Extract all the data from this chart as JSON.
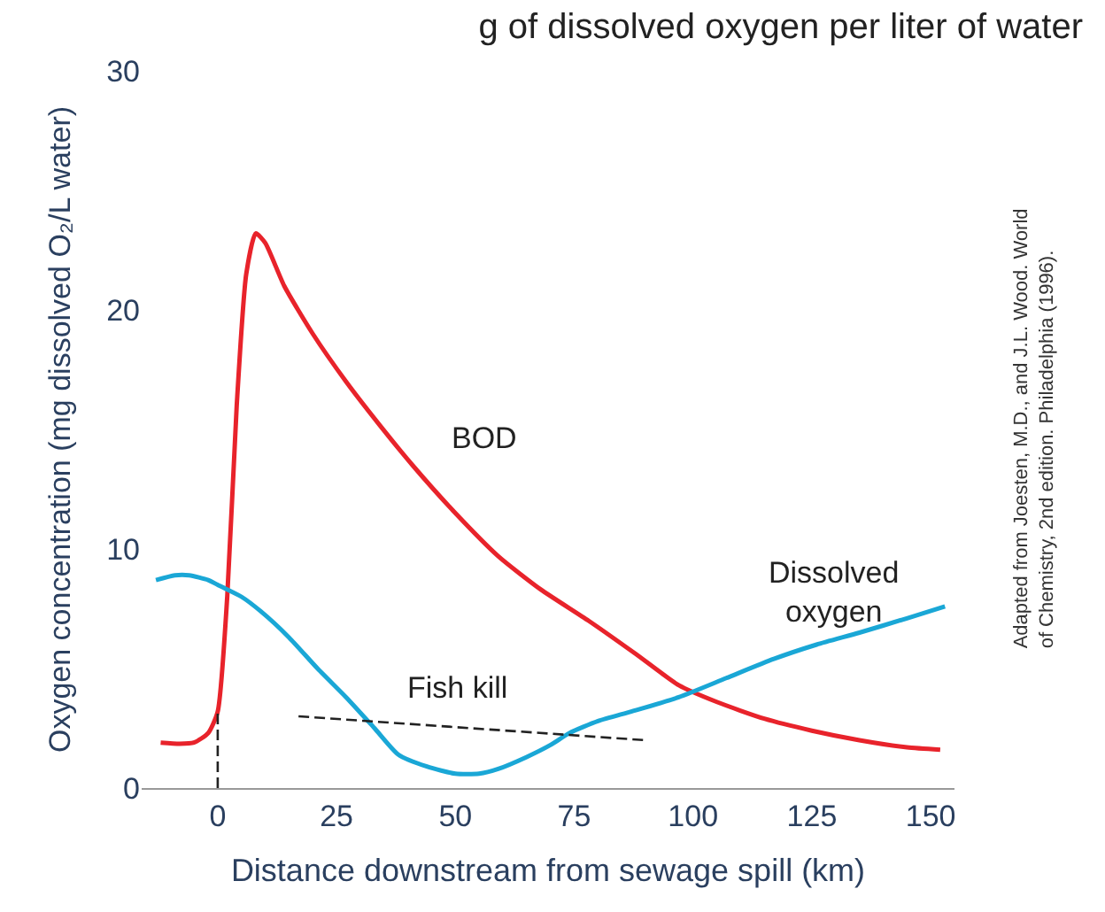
{
  "chart_data": {
    "type": "line",
    "title": "g of dissolved oxygen per liter of water",
    "xlabel": "Distance downstream from sewage spill (km)",
    "ylabel": "Oxygen concentration (mg dissolved O₂/L water)",
    "xlim": [
      -16,
      155
    ],
    "xticks": [
      0,
      25,
      50,
      75,
      100,
      125,
      150
    ],
    "ylim": [
      0,
      30
    ],
    "yticks": [
      0,
      10,
      20,
      30
    ],
    "legend": false,
    "series": [
      {
        "name": "BOD",
        "color": "#e8232b",
        "x": [
          -12,
          -8,
          -5,
          -2,
          0,
          2,
          4,
          6,
          8,
          10,
          14,
          20,
          27,
          34,
          41,
          50,
          59,
          68,
          78,
          88,
          97,
          105,
          115,
          125,
          135,
          145,
          152
        ],
        "values": [
          1.9,
          1.85,
          1.9,
          2.3,
          3.2,
          8,
          16,
          21.5,
          23.2,
          22.8,
          21,
          19,
          17,
          15.2,
          13.5,
          11.5,
          9.7,
          8.3,
          7,
          5.6,
          4.3,
          3.6,
          2.9,
          2.4,
          2,
          1.7,
          1.6
        ]
      },
      {
        "name": "Dissolved oxygen",
        "color": "#1aa7d6",
        "x": [
          -13,
          -9,
          -6,
          -2,
          0,
          5,
          9,
          15,
          21,
          27,
          33,
          38,
          44,
          50,
          55,
          59,
          65,
          70,
          74,
          80,
          87,
          97,
          107,
          117,
          126,
          135,
          145,
          153
        ],
        "values": [
          8.7,
          8.9,
          8.9,
          8.7,
          8.5,
          8,
          7.4,
          6.3,
          5,
          3.8,
          2.5,
          1.4,
          0.9,
          0.6,
          0.6,
          0.8,
          1.3,
          1.8,
          2.3,
          2.8,
          3.2,
          3.8,
          4.6,
          5.4,
          6,
          6.5,
          7.1,
          7.6
        ]
      },
      {
        "name": "Fish kill",
        "color": "#222222",
        "type": "line",
        "line_style": "dashed",
        "x": [
          17,
          90
        ],
        "values": [
          3.0,
          2.0
        ]
      },
      {
        "color": "#222222",
        "type": "line",
        "line_style": "dashed",
        "x": [
          0,
          0
        ],
        "values": [
          0,
          3.2
        ]
      }
    ],
    "annotations": [
      "Adapted from Joesten, M.D., and J.L. Wood. World of Chemistry, 2nd edition. Philadelphia (1996)."
    ]
  }
}
